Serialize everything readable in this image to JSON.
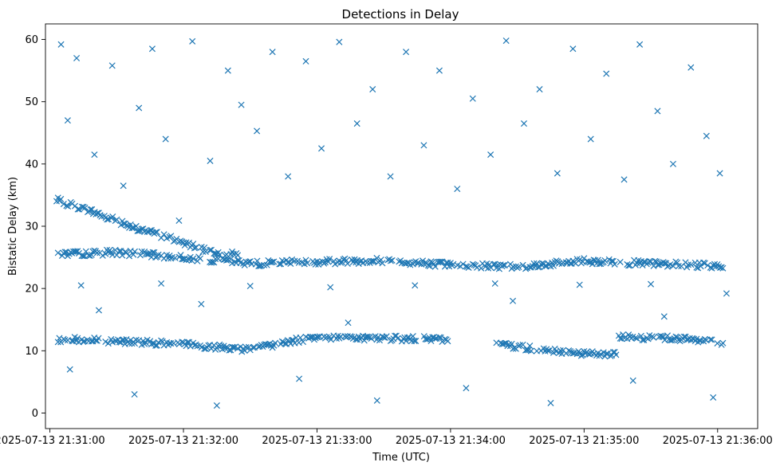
{
  "chart_data": {
    "type": "scatter",
    "title": "Detections in Delay",
    "xlabel": "Time (UTC)",
    "ylabel": "Bistatic Delay (km)",
    "x_axis_kind": "datetime",
    "xlim": [
      "2025-07-13 21:30:58",
      "2025-07-13 21:36:18"
    ],
    "ylim": [
      -2.5,
      62.5
    ],
    "x_ticks": [
      "2025-07-13 21:31:00",
      "2025-07-13 21:32:00",
      "2025-07-13 21:33:00",
      "2025-07-13 21:34:00",
      "2025-07-13 21:35:00",
      "2025-07-13 21:36:00"
    ],
    "y_ticks": [
      0,
      10,
      20,
      30,
      40,
      50,
      60
    ],
    "marker": "x",
    "color": "#1f77b4",
    "grid": false,
    "series": [
      {
        "tracks": [
          {
            "t": [
              "21:31:03",
              "21:31:17",
              "21:31:40",
              "21:31:55",
              "21:32:10",
              "21:32:25"
            ],
            "y": [
              34.2,
              32.6,
              29.6,
              28.0,
              26.2,
              25.3
            ]
          },
          {
            "t": [
              "21:31:03",
              "21:31:30",
              "21:32:00",
              "21:32:30",
              "21:33:00",
              "21:33:30",
              "21:34:00",
              "21:34:30",
              "21:35:00",
              "21:35:30",
              "21:36:03"
            ],
            "y": [
              25.5,
              25.8,
              25.0,
              24.0,
              24.3,
              24.5,
              23.8,
              23.5,
              24.4,
              24.0,
              23.6
            ]
          },
          {
            "t": [
              "21:31:03",
              "21:31:30",
              "21:32:00",
              "21:32:30",
              "21:33:00",
              "21:33:30",
              "21:34:00"
            ],
            "y": [
              11.8,
              11.6,
              11.0,
              10.2,
              12.3,
              12.0,
              11.8
            ]
          },
          {
            "t": [
              "21:34:20",
              "21:34:50",
              "21:35:15"
            ],
            "y": [
              11.1,
              9.8,
              9.3
            ]
          },
          {
            "t": [
              "21:35:15",
              "21:35:40",
              "21:36:03"
            ],
            "y": [
              12.3,
              12.0,
              11.3
            ]
          }
        ],
        "random_points": {
          "t": [
            "21:31:05",
            "21:31:08",
            "21:31:12",
            "21:31:20",
            "21:31:28",
            "21:31:33",
            "21:31:40",
            "21:31:46",
            "21:31:52",
            "21:31:58",
            "21:32:04",
            "21:32:12",
            "21:32:20",
            "21:32:26",
            "21:32:33",
            "21:32:40",
            "21:32:47",
            "21:32:55",
            "21:33:02",
            "21:33:10",
            "21:33:18",
            "21:33:25",
            "21:33:33",
            "21:33:40",
            "21:33:48",
            "21:33:55",
            "21:34:03",
            "21:34:10",
            "21:34:18",
            "21:34:25",
            "21:34:33",
            "21:34:40",
            "21:34:48",
            "21:34:55",
            "21:35:03",
            "21:35:10",
            "21:35:18",
            "21:35:25",
            "21:35:33",
            "21:35:40",
            "21:35:48",
            "21:35:55",
            "21:36:01",
            "21:31:09",
            "21:31:38",
            "21:32:15",
            "21:32:52",
            "21:33:27",
            "21:34:07",
            "21:34:45",
            "21:35:22",
            "21:35:58",
            "21:31:22",
            "21:32:08",
            "21:33:14",
            "21:34:28",
            "21:35:36",
            "21:31:14",
            "21:31:50",
            "21:32:30",
            "21:33:06",
            "21:33:44",
            "21:34:20",
            "21:34:58",
            "21:35:30",
            "21:36:04"
          ],
          "y": [
            59.2,
            47.0,
            57.0,
            41.5,
            55.8,
            36.5,
            49.0,
            58.5,
            44.0,
            30.9,
            59.7,
            40.5,
            55.0,
            49.5,
            45.3,
            58.0,
            38.0,
            56.5,
            42.5,
            59.6,
            46.5,
            52.0,
            38.0,
            58.0,
            43.0,
            55.0,
            36.0,
            50.5,
            41.5,
            59.8,
            46.5,
            52.0,
            38.5,
            58.5,
            44.0,
            54.5,
            37.5,
            59.2,
            48.5,
            40.0,
            55.5,
            44.5,
            38.5,
            7.0,
            3.0,
            1.2,
            5.5,
            2.0,
            4.0,
            1.6,
            5.2,
            2.5,
            16.5,
            17.5,
            14.5,
            18.0,
            15.5,
            20.5,
            20.8,
            20.4,
            20.2,
            20.5,
            20.8,
            20.6,
            20.7,
            19.2
          ]
        }
      }
    ]
  }
}
